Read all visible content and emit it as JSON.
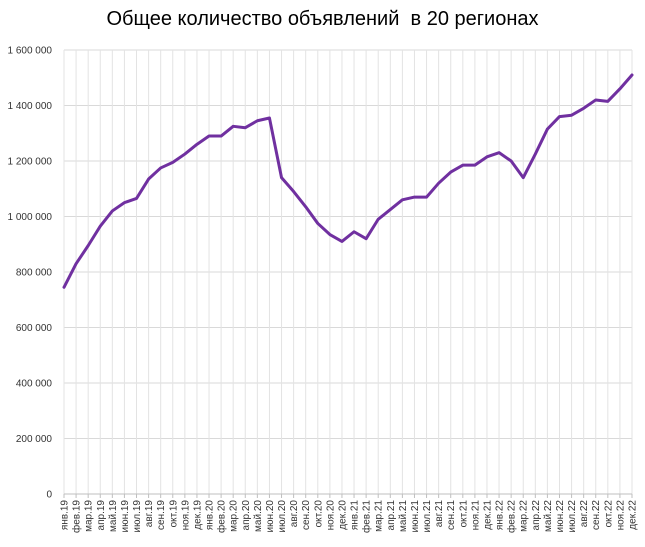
{
  "chart_data": {
    "type": "line",
    "title": "Общее количество объявлений  в 20 регионах",
    "xlabel": "",
    "ylabel": "",
    "ylim": [
      0,
      1600000
    ],
    "y_ticks": [
      0,
      200000,
      400000,
      600000,
      800000,
      1000000,
      1200000,
      1400000,
      1600000
    ],
    "y_tick_labels": [
      "0",
      "200 000",
      "400 000",
      "600 000",
      "800 000",
      "1 000 000",
      "1 200 000",
      "1 400 000",
      "1 600 000"
    ],
    "grid": true,
    "line_color": "#7030a0",
    "categories": [
      "янв.19",
      "фев.19",
      "мар.19",
      "апр.19",
      "май.19",
      "июн.19",
      "июл.19",
      "авг.19",
      "сен.19",
      "окт.19",
      "ноя.19",
      "дек.19",
      "янв.20",
      "фев.20",
      "мар.20",
      "апр.20",
      "май.20",
      "июн.20",
      "июл.20",
      "авг.20",
      "сен.20",
      "окт.20",
      "ноя.20",
      "дек.20",
      "янв.21",
      "фев.21",
      "мар.21",
      "апр.21",
      "май.21",
      "июн.21",
      "июл.21",
      "авг.21",
      "сен.21",
      "окт.21",
      "ноя.21",
      "дек.21",
      "янв.22",
      "фев.22",
      "мар.22",
      "апр.22",
      "май.22",
      "июн.22",
      "июл.22",
      "авг.22",
      "сен.22",
      "окт.22",
      "ноя.22",
      "дек.22"
    ],
    "series": [
      {
        "values": [
          745000,
          830000,
          895000,
          965000,
          1020000,
          1050000,
          1065000,
          1135000,
          1175000,
          1195000,
          1225000,
          1260000,
          1290000,
          1290000,
          1325000,
          1320000,
          1345000,
          1355000,
          1140000,
          1090000,
          1035000,
          975000,
          935000,
          910000,
          945000,
          920000,
          990000,
          1025000,
          1060000,
          1070000,
          1070000,
          1120000,
          1160000,
          1185000,
          1185000,
          1215000,
          1230000,
          1200000,
          1140000,
          1225000,
          1315000,
          1360000,
          1365000,
          1390000,
          1420000,
          1415000,
          1460000,
          1510000
        ]
      }
    ]
  }
}
